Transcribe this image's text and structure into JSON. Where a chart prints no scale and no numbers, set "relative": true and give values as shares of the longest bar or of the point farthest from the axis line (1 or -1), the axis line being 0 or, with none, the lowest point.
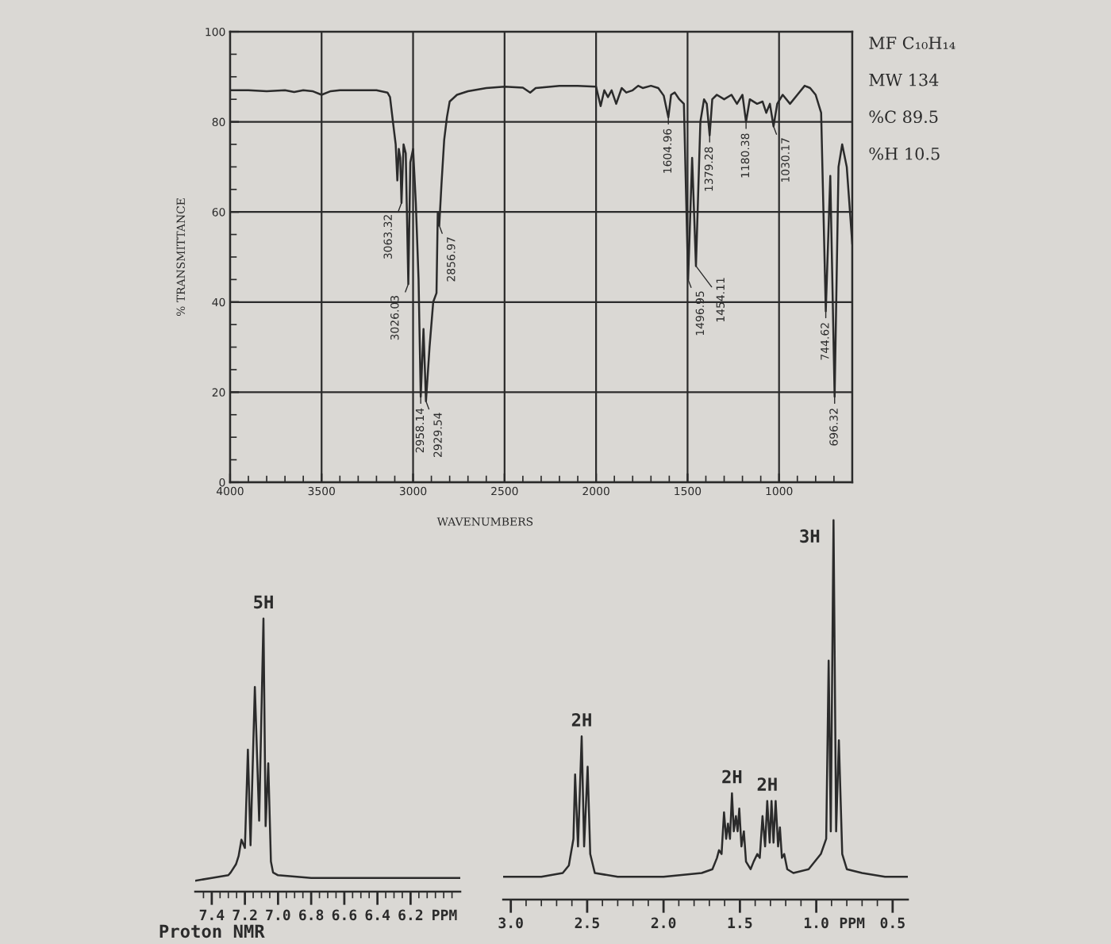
{
  "chart_data": [
    {
      "type": "line",
      "xlabel": "WAVENUMBERS",
      "ylabel": "% TRANSMITTANCE",
      "x": [
        4000,
        3900,
        3800,
        3700,
        3650,
        3600,
        3550,
        3500,
        3450,
        3400,
        3300,
        3200,
        3140,
        3126,
        3110,
        3095,
        3086,
        3078,
        3070,
        3063.32,
        3052,
        3040,
        3026.03,
        3015,
        3000,
        2985,
        2970,
        2958.14,
        2943,
        2929.54,
        2910,
        2890,
        2872,
        2865,
        2856.97,
        2845,
        2830,
        2815,
        2800,
        2760,
        2700,
        2600,
        2500,
        2400,
        2360,
        2330,
        2200,
        2100,
        2000,
        1975,
        1955,
        1935,
        1915,
        1890,
        1860,
        1835,
        1800,
        1770,
        1745,
        1700,
        1660,
        1630,
        1604.96,
        1590,
        1570,
        1545,
        1520,
        1496.95,
        1475,
        1454.11,
        1430,
        1410,
        1395,
        1379.28,
        1365,
        1340,
        1300,
        1260,
        1230,
        1200,
        1180.38,
        1160,
        1120,
        1090,
        1070,
        1050,
        1030.17,
        1010,
        980,
        940,
        900,
        860,
        830,
        800,
        770,
        744.62,
        720,
        696.32,
        675,
        655,
        630,
        600
      ],
      "series": [
        {
          "color": "#2b2b2b",
          "values": [
            87,
            87,
            86.8,
            87,
            86.6,
            87,
            86.8,
            86,
            86.8,
            87,
            87,
            87,
            86.5,
            85.5,
            80,
            75,
            67,
            74,
            72,
            62,
            75,
            73,
            44,
            71,
            74,
            62,
            45,
            19,
            34,
            18,
            30,
            40,
            42,
            60,
            57,
            66,
            76,
            81,
            84.5,
            86,
            86.8,
            87.5,
            87.8,
            87.6,
            86.5,
            87.5,
            88,
            88,
            87.8,
            83.5,
            87,
            85.5,
            87,
            84,
            87.5,
            86.5,
            87,
            88,
            87.5,
            88,
            87.5,
            85.8,
            81,
            86,
            86.5,
            85,
            84,
            45,
            72,
            48,
            80,
            85,
            84,
            77,
            85,
            86,
            85,
            86,
            84,
            86,
            80,
            85,
            84,
            84.5,
            82,
            84,
            79,
            84,
            86,
            84,
            86,
            88,
            87.5,
            86,
            82,
            38,
            68,
            19,
            70,
            75,
            70,
            53
          ]
        }
      ],
      "xlim": [
        4000,
        600
      ],
      "ylim": [
        0,
        100
      ],
      "xticks": [
        4000,
        {
          "value": 3900,
          "label": null
        },
        {
          "value": 3800,
          "label": null
        },
        {
          "value": 3700,
          "label": null
        },
        {
          "value": 3600,
          "label": null
        },
        3500,
        {
          "value": 3400,
          "label": null
        },
        {
          "value": 3300,
          "label": null
        },
        {
          "value": 3200,
          "label": null
        },
        {
          "value": 3100,
          "label": null
        },
        3000,
        {
          "value": 2900,
          "label": null
        },
        {
          "value": 2800,
          "label": null
        },
        {
          "value": 2700,
          "label": null
        },
        {
          "value": 2600,
          "label": null
        },
        2500,
        {
          "value": 2400,
          "label": null
        },
        {
          "value": 2300,
          "label": null
        },
        {
          "value": 2200,
          "label": null
        },
        {
          "value": 2100,
          "label": null
        },
        2000,
        {
          "value": 1900,
          "label": null
        },
        {
          "value": 1800,
          "label": null
        },
        {
          "value": 1700,
          "label": null
        },
        {
          "value": 1600,
          "label": null
        },
        1500,
        {
          "value": 1400,
          "label": null
        },
        {
          "value": 1300,
          "label": null
        },
        {
          "value": 1200,
          "label": null
        },
        {
          "value": 1100,
          "label": null
        },
        1000,
        {
          "value": 900,
          "label": null
        },
        {
          "value": 800,
          "label": null
        },
        {
          "value": 700,
          "label": null
        },
        {
          "value": 600,
          "label": null
        }
      ],
      "yticks": [
        0,
        {
          "value": 5,
          "label": null
        },
        {
          "value": 10,
          "label": null
        },
        {
          "value": 15,
          "label": null
        },
        20,
        {
          "value": 25,
          "label": null
        },
        {
          "value": 30,
          "label": null
        },
        {
          "value": 35,
          "label": null
        },
        40,
        {
          "value": 45,
          "label": null
        },
        {
          "value": 50,
          "label": null
        },
        {
          "value": 55,
          "label": null
        },
        60,
        {
          "value": 65,
          "label": null
        },
        {
          "value": 70,
          "label": null
        },
        {
          "value": 75,
          "label": null
        },
        80,
        {
          "value": 85,
          "label": null
        },
        {
          "value": 90,
          "label": null
        },
        {
          "value": 95,
          "label": null
        },
        100
      ],
      "grid": true,
      "annotations": [
        {
          "text": "3063.32",
          "x": 3063.32,
          "y": 62
        },
        {
          "text": "3026.03",
          "x": 3026.03,
          "y": 44
        },
        {
          "text": "2958.14",
          "x": 2958.14,
          "y": 19
        },
        {
          "text": "2929.54",
          "x": 2929.54,
          "y": 18
        },
        {
          "text": "2856.97",
          "x": 2856.97,
          "y": 57
        },
        {
          "text": "1604.96",
          "x": 1604.96,
          "y": 81
        },
        {
          "text": "1496.95",
          "x": 1496.95,
          "y": 45
        },
        {
          "text": "1454.11",
          "x": 1454.11,
          "y": 48
        },
        {
          "text": "1379.28",
          "x": 1379.28,
          "y": 77
        },
        {
          "text": "1180.38",
          "x": 1180.38,
          "y": 80
        },
        {
          "text": "1030.17",
          "x": 1030.17,
          "y": 79
        },
        {
          "text": "744.62",
          "x": 744.62,
          "y": 38
        },
        {
          "text": "696.32",
          "x": 696.32,
          "y": 19
        },
        "MF C₁₀H₁₄",
        "MW 134",
        "%C 89.5",
        "%H 10.5"
      ]
    },
    {
      "type": "line",
      "relative": true,
      "tick_labels": "x",
      "xlabel": "PPM",
      "x": [
        7.5,
        7.4,
        7.3,
        7.286,
        7.254,
        7.238,
        7.221,
        7.2,
        7.182,
        7.166,
        7.14,
        7.114,
        7.088,
        7.075,
        7.059,
        7.043,
        7.03,
        7.0,
        6.8,
        6.5,
        6.2,
        5.9
      ],
      "series": [
        {
          "color": "#2b2b2b",
          "values": [
            0.04,
            0.05,
            0.06,
            0.07,
            0.1,
            0.13,
            0.19,
            0.16,
            0.52,
            0.17,
            0.75,
            0.26,
            1.0,
            0.24,
            0.47,
            0.11,
            0.07,
            0.06,
            0.05,
            0.05,
            0.05,
            0.05
          ]
        }
      ],
      "xlim": [
        7.5,
        5.9
      ],
      "xticks": [
        {
          "value": 7.45,
          "label": null
        },
        7.4,
        {
          "value": 7.35,
          "label": null
        },
        {
          "value": 7.3,
          "label": null
        },
        {
          "value": 7.25,
          "label": null
        },
        7.2,
        {
          "value": 7.15,
          "label": null
        },
        {
          "value": 7.1,
          "label": null
        },
        {
          "value": 7.05,
          "label": null
        },
        {
          "value": 7,
          "label": "7.0"
        },
        {
          "value": 6.95,
          "label": null
        },
        {
          "value": 6.9,
          "label": null
        },
        {
          "value": 6.85,
          "label": null
        },
        6.8,
        {
          "value": 6.75,
          "label": null
        },
        {
          "value": 6.7,
          "label": null
        },
        {
          "value": 6.65,
          "label": null
        },
        6.6,
        {
          "value": 6.55,
          "label": null
        },
        {
          "value": 6.5,
          "label": null
        },
        {
          "value": 6.45,
          "label": null
        },
        6.4,
        {
          "value": 6.35,
          "label": null
        },
        {
          "value": 6.3,
          "label": null
        },
        {
          "value": 6.25,
          "label": null
        },
        6.2,
        {
          "value": 6.15,
          "label": null
        },
        {
          "value": 6.1,
          "label": null
        },
        {
          "value": 6.05,
          "label": null
        },
        {
          "value": 6,
          "label": null
        },
        {
          "value": 5.95,
          "label": null
        }
      ],
      "annotations": [
        {
          "text": "5H",
          "x": 7.088,
          "y": 1.0
        },
        "Proton NMR"
      ]
    },
    {
      "type": "line",
      "relative": true,
      "tick_labels": "x",
      "xlabel": "PPM",
      "x": [
        3.05,
        2.8,
        2.66,
        2.62,
        2.59,
        2.579,
        2.56,
        2.536,
        2.52,
        2.497,
        2.48,
        2.45,
        2.3,
        2.0,
        1.75,
        1.68,
        1.65,
        1.637,
        1.62,
        1.604,
        1.59,
        1.578,
        1.565,
        1.552,
        1.54,
        1.526,
        1.515,
        1.504,
        1.49,
        1.474,
        1.46,
        1.43,
        1.41,
        1.386,
        1.37,
        1.352,
        1.335,
        1.321,
        1.305,
        1.293,
        1.28,
        1.266,
        1.25,
        1.238,
        1.225,
        1.21,
        1.19,
        1.15,
        1.05,
        0.97,
        0.935,
        0.919,
        0.905,
        0.887,
        0.87,
        0.852,
        0.83,
        0.8,
        0.7,
        0.55,
        0.4
      ],
      "series": [
        {
          "color": "#2b2b2b",
          "values": [
            0.06,
            0.06,
            0.07,
            0.09,
            0.16,
            0.33,
            0.14,
            0.43,
            0.14,
            0.35,
            0.12,
            0.07,
            0.06,
            0.06,
            0.07,
            0.08,
            0.11,
            0.13,
            0.12,
            0.23,
            0.16,
            0.2,
            0.16,
            0.28,
            0.18,
            0.22,
            0.18,
            0.24,
            0.14,
            0.18,
            0.1,
            0.08,
            0.1,
            0.12,
            0.11,
            0.22,
            0.14,
            0.26,
            0.15,
            0.26,
            0.15,
            0.26,
            0.14,
            0.19,
            0.11,
            0.12,
            0.08,
            0.07,
            0.08,
            0.12,
            0.16,
            0.63,
            0.18,
            1.0,
            0.18,
            0.42,
            0.12,
            0.08,
            0.07,
            0.06,
            0.06
          ]
        }
      ],
      "xlim": [
        3.05,
        0.4
      ],
      "xticks": [
        {
          "value": 3,
          "label": "3.0"
        },
        {
          "value": 2.9,
          "label": null
        },
        {
          "value": 2.8,
          "label": null
        },
        {
          "value": 2.7,
          "label": null
        },
        {
          "value": 2.6,
          "label": null
        },
        2.5,
        {
          "value": 2.4,
          "label": null
        },
        {
          "value": 2.3,
          "label": null
        },
        {
          "value": 2.2,
          "label": null
        },
        {
          "value": 2.1,
          "label": null
        },
        {
          "value": 2,
          "label": "2.0"
        },
        {
          "value": 1.9,
          "label": null
        },
        {
          "value": 1.8,
          "label": null
        },
        {
          "value": 1.7,
          "label": null
        },
        {
          "value": 1.6,
          "label": null
        },
        1.5,
        {
          "value": 1.4,
          "label": null
        },
        {
          "value": 1.3,
          "label": null
        },
        {
          "value": 1.2,
          "label": null
        },
        {
          "value": 1.1,
          "label": null
        },
        {
          "value": 1,
          "label": "1.0"
        },
        {
          "value": 0.9,
          "label": null
        },
        {
          "value": 0.8,
          "label": null
        },
        {
          "value": 0.7,
          "label": null
        },
        {
          "value": 0.6,
          "label": null
        },
        0.5
      ],
      "annotations": [
        {
          "text": "2H",
          "x": 2.536,
          "y": 0.43
        },
        {
          "text": "2H",
          "x": 1.552,
          "y": 0.28
        },
        {
          "text": "2H",
          "x": 1.321,
          "y": 0.26
        },
        {
          "text": "3H",
          "x": 0.887,
          "y": 1.0
        }
      ]
    }
  ]
}
